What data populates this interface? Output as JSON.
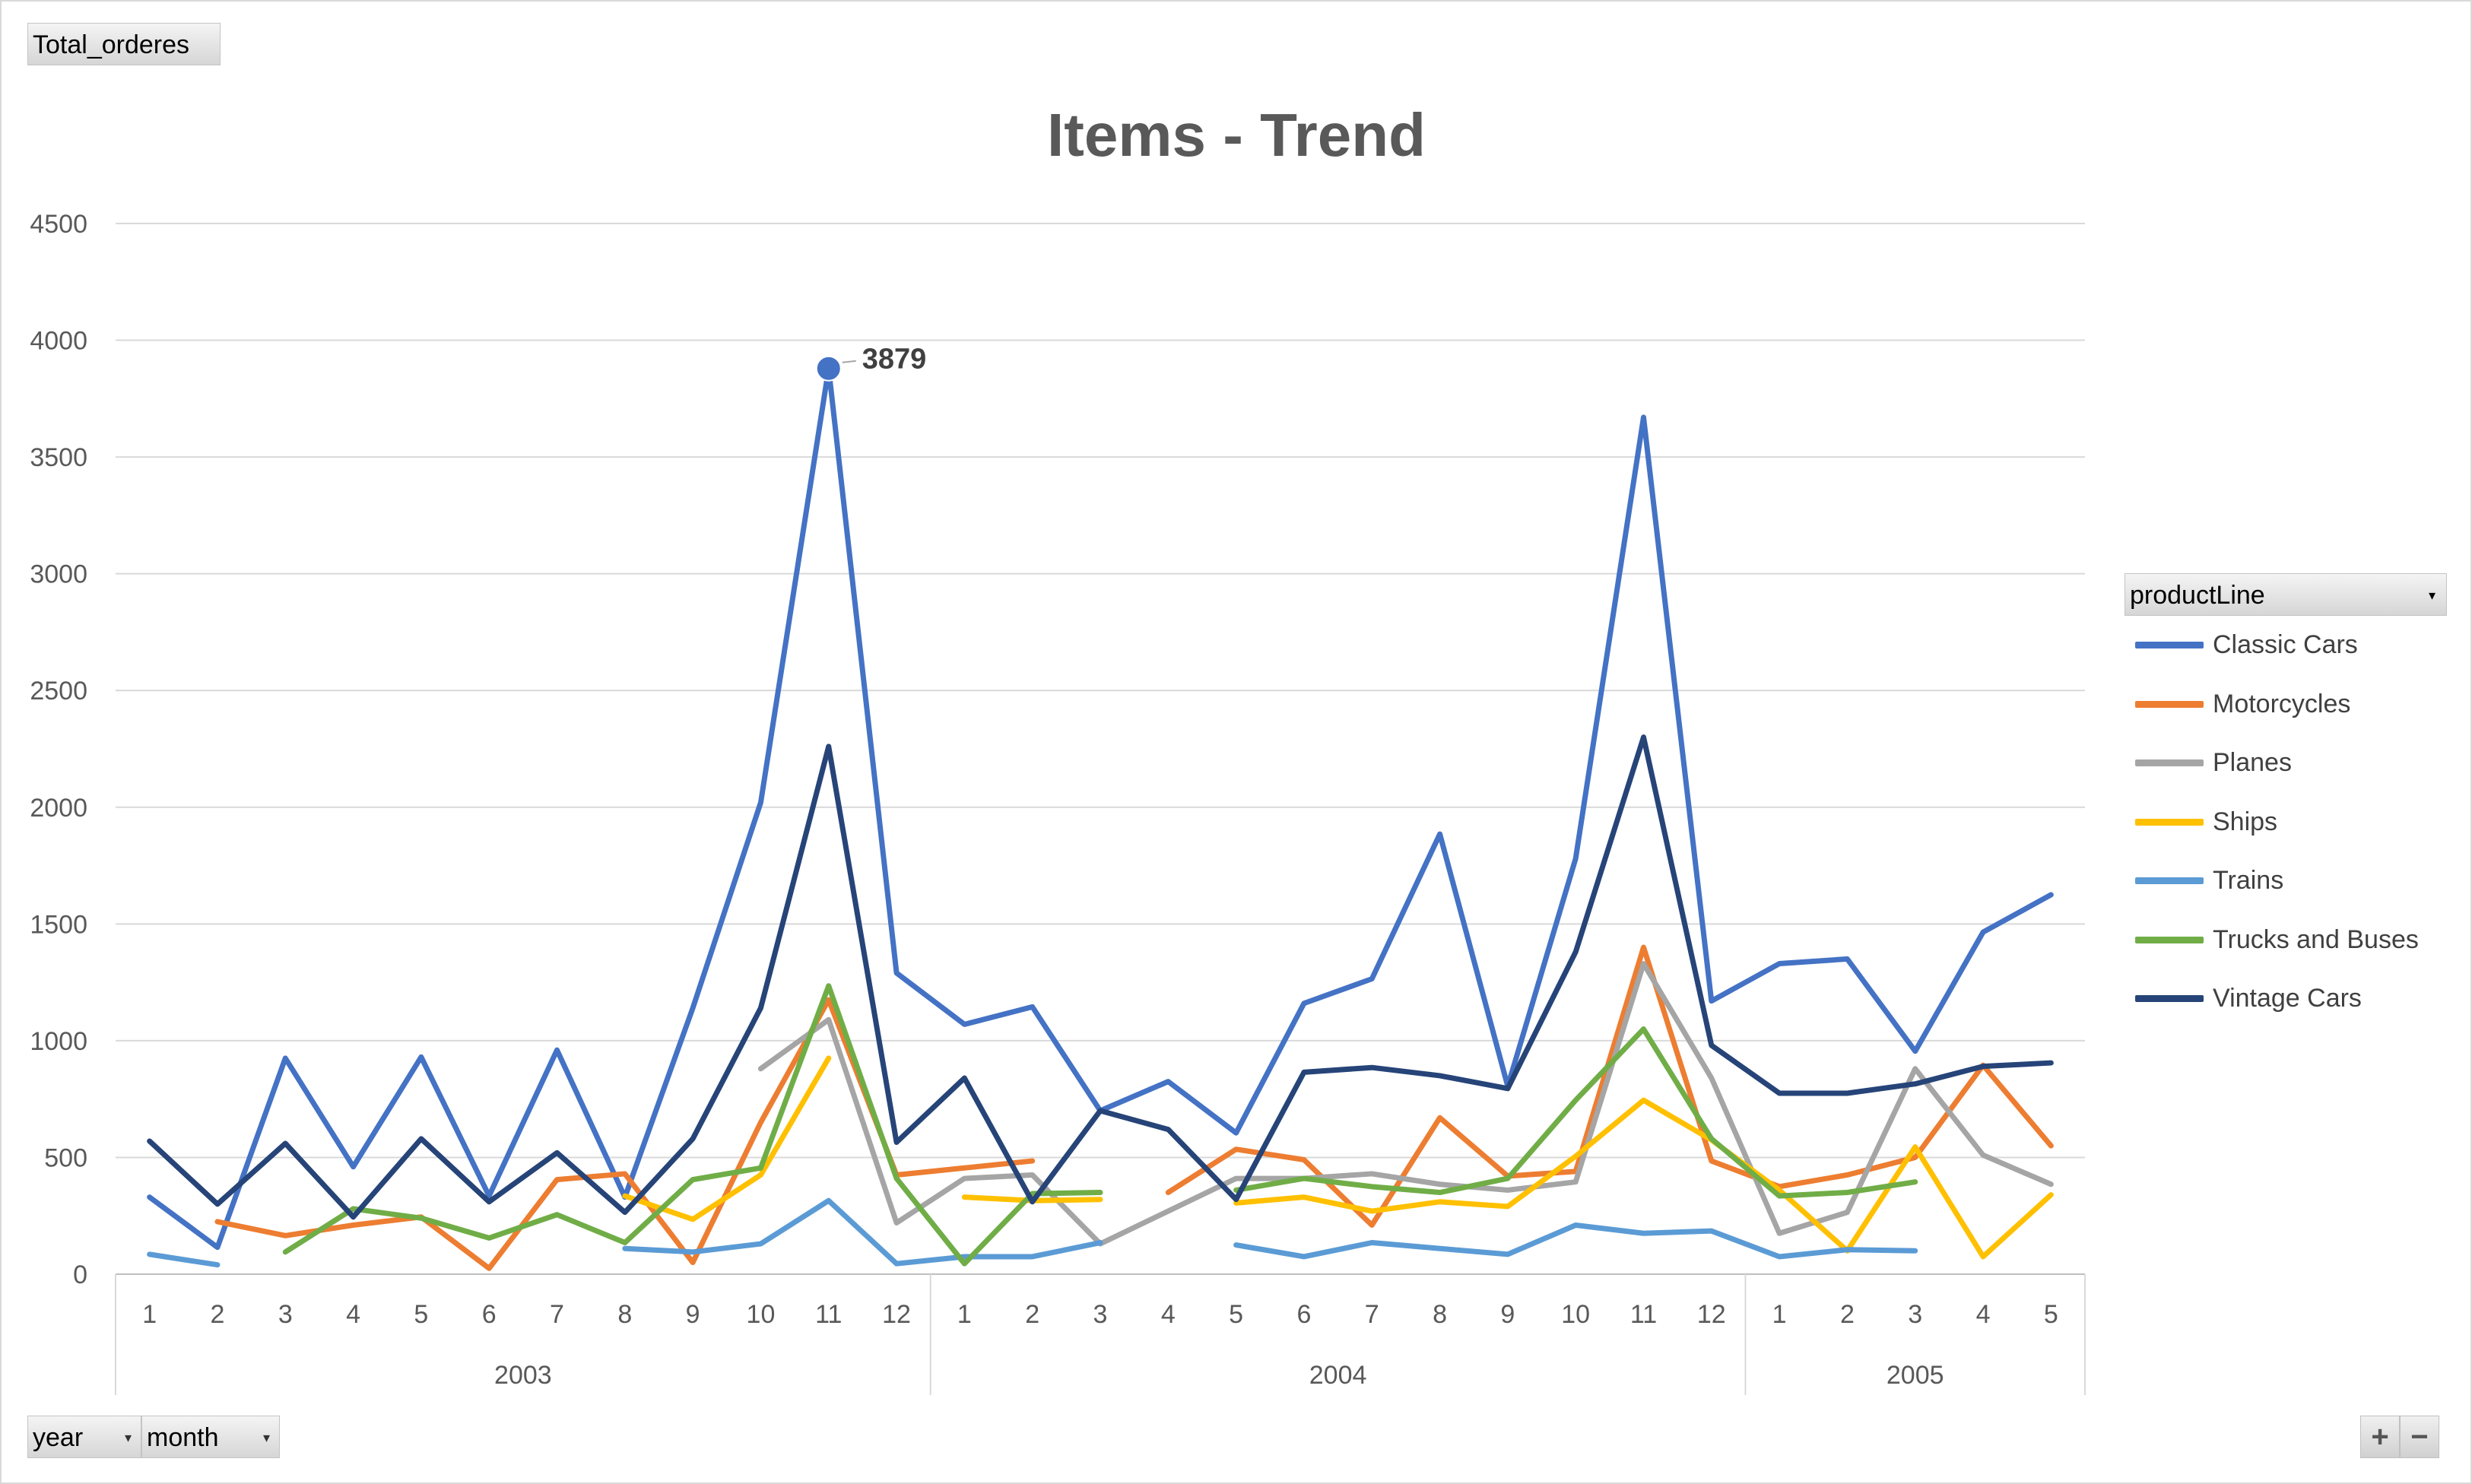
{
  "value_field_button": "Total_orderes",
  "axis_field_buttons": [
    {
      "label": "year",
      "icon": "dropdown-arrow-icon"
    },
    {
      "label": "month",
      "icon": "dropdown-arrow-icon"
    }
  ],
  "legend_field_button": {
    "label": "productLine",
    "icon": "dropdown-arrow-icon"
  },
  "zoom_buttons": {
    "expand": "+",
    "collapse": "−"
  },
  "chart_data": {
    "type": "line",
    "title": "Items - Trend",
    "ylim": [
      0,
      4500
    ],
    "y_ticks": [
      0,
      500,
      1000,
      1500,
      2000,
      2500,
      3000,
      3500,
      4000,
      4500
    ],
    "grid": true,
    "legend_position": "right",
    "categories": [
      "1",
      "2",
      "3",
      "4",
      "5",
      "6",
      "7",
      "8",
      "9",
      "10",
      "11",
      "12",
      "1",
      "2",
      "3",
      "4",
      "5",
      "6",
      "7",
      "8",
      "9",
      "10",
      "11",
      "12",
      "1",
      "2",
      "3",
      "4",
      "5"
    ],
    "category_groups": [
      {
        "label": "2003",
        "count": 12
      },
      {
        "label": "2004",
        "count": 12
      },
      {
        "label": "2005",
        "count": 5
      }
    ],
    "annotation": {
      "series": "Classic Cars",
      "index": 10,
      "value": 3879,
      "label": "3879"
    },
    "series": [
      {
        "name": "Classic Cars",
        "color": "#4472C4",
        "values": [
          330,
          115,
          925,
          460,
          930,
          335,
          960,
          330,
          1140,
          2020,
          3879,
          1290,
          1070,
          1145,
          700,
          825,
          605,
          1160,
          1265,
          1885,
          805,
          1780,
          3670,
          1170,
          1330,
          1350,
          955,
          1465,
          1625
        ]
      },
      {
        "name": "Motorcycles",
        "color": "#ED7D31",
        "values": [
          null,
          225,
          165,
          210,
          245,
          25,
          405,
          430,
          50,
          650,
          1175,
          425,
          455,
          485,
          null,
          350,
          535,
          490,
          210,
          670,
          420,
          440,
          1400,
          485,
          375,
          425,
          500,
          895,
          550
        ]
      },
      {
        "name": "Planes",
        "color": "#A5A5A5",
        "values": [
          null,
          null,
          null,
          null,
          null,
          null,
          null,
          null,
          null,
          880,
          1090,
          220,
          410,
          425,
          130,
          270,
          410,
          410,
          430,
          385,
          360,
          395,
          1330,
          840,
          175,
          265,
          880,
          510,
          385
        ]
      },
      {
        "name": "Ships",
        "color": "#FFC000",
        "values": [
          null,
          null,
          null,
          null,
          null,
          null,
          null,
          335,
          235,
          425,
          925,
          null,
          330,
          315,
          320,
          null,
          305,
          330,
          270,
          310,
          290,
          505,
          745,
          575,
          360,
          100,
          545,
          75,
          340
        ]
      },
      {
        "name": "Trains",
        "color": "#5B9BD5",
        "values": [
          85,
          40,
          null,
          null,
          null,
          null,
          null,
          110,
          95,
          130,
          315,
          45,
          75,
          75,
          135,
          null,
          125,
          75,
          135,
          110,
          85,
          210,
          175,
          185,
          75,
          105,
          100,
          null,
          null
        ]
      },
      {
        "name": "Trucks and Buses",
        "color": "#70AD47",
        "values": [
          null,
          null,
          95,
          280,
          240,
          155,
          255,
          135,
          405,
          455,
          1235,
          410,
          45,
          345,
          350,
          null,
          360,
          410,
          375,
          350,
          410,
          745,
          1050,
          580,
          335,
          350,
          395,
          null,
          null
        ]
      },
      {
        "name": "Vintage Cars",
        "color": "#264478",
        "values": [
          570,
          300,
          560,
          245,
          580,
          310,
          520,
          265,
          580,
          1140,
          2260,
          565,
          840,
          310,
          700,
          620,
          320,
          865,
          885,
          850,
          795,
          1380,
          2300,
          980,
          775,
          775,
          815,
          890,
          905
        ]
      }
    ]
  }
}
